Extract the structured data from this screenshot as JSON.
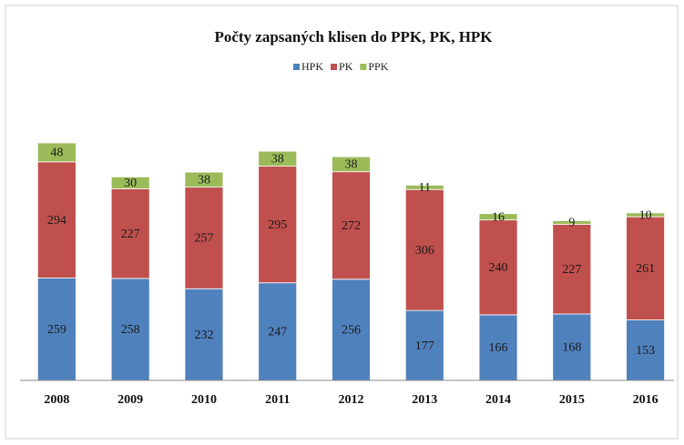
{
  "chart_data": {
    "type": "stacked_bar",
    "title": "Počty zapsaných  klisen  do PPK, PK, HPK",
    "categories": [
      "2008",
      "2009",
      "2010",
      "2011",
      "2012",
      "2013",
      "2014",
      "2015",
      "2016"
    ],
    "series": [
      {
        "name": "HPK",
        "color": "#4f81bd",
        "values": [
          259,
          258,
          232,
          247,
          256,
          177,
          166,
          168,
          153
        ]
      },
      {
        "name": "PK",
        "color": "#c0504d",
        "values": [
          294,
          227,
          257,
          295,
          272,
          306,
          240,
          227,
          261
        ]
      },
      {
        "name": "PPK",
        "color": "#9bbb59",
        "values": [
          48,
          30,
          38,
          38,
          38,
          11,
          16,
          9,
          10
        ]
      }
    ],
    "legend": "top"
  }
}
